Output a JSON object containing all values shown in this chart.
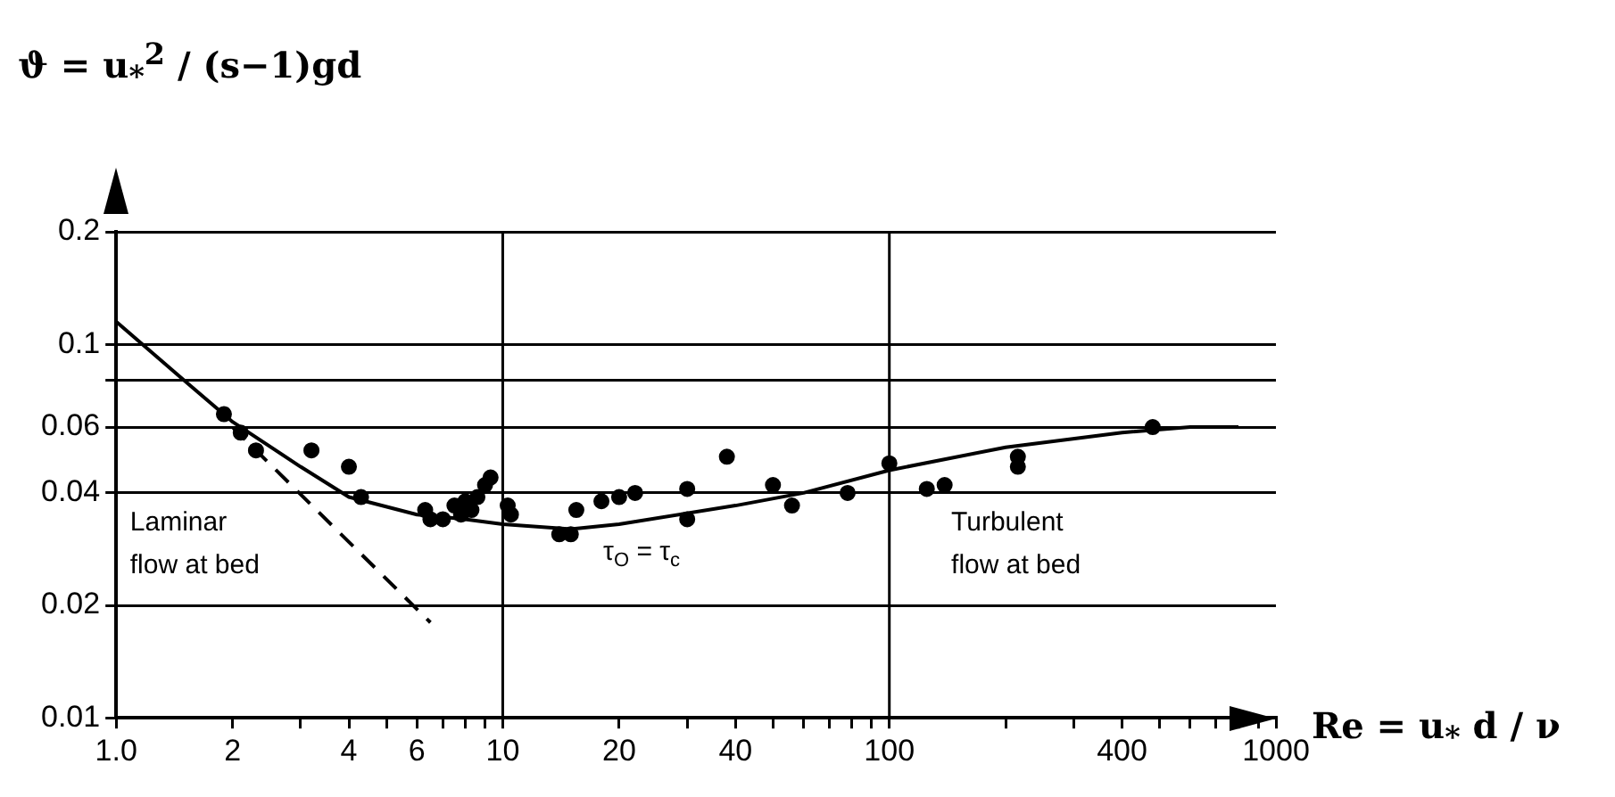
{
  "chart_data": {
    "type": "scatter",
    "ylabel": "ϑ = u$_{*}$$^{2}$ / (s−1)gd",
    "xlabel": "Re = u$_{*}$ d / ν",
    "log": "xy",
    "grid": "y",
    "xlim": [
      1,
      1000
    ],
    "ylim": [
      0.01,
      0.2
    ],
    "xticks": [
      {
        "value": 1,
        "label": "1.0"
      },
      2,
      {
        "value": 3,
        "label": null
      },
      4,
      {
        "value": 5,
        "label": null
      },
      6,
      {
        "value": 7,
        "label": null
      },
      {
        "value": 8,
        "label": null
      },
      {
        "value": 9,
        "label": null
      },
      10,
      20,
      {
        "value": 30,
        "label": null
      },
      40,
      {
        "value": 50,
        "label": null
      },
      {
        "value": 60,
        "label": null
      },
      {
        "value": 70,
        "label": null
      },
      {
        "value": 80,
        "label": null
      },
      {
        "value": 90,
        "label": null
      },
      100,
      {
        "value": 200,
        "label": null
      },
      {
        "value": 300,
        "label": null
      },
      400,
      {
        "value": 500,
        "label": null
      },
      {
        "value": 600,
        "label": null
      },
      {
        "value": 700,
        "label": null
      },
      {
        "value": 800,
        "label": null
      },
      {
        "value": 900,
        "label": null
      },
      1000
    ],
    "yticks": [
      0.01,
      0.02,
      0.04,
      0.06,
      {
        "value": 0.08,
        "label": null
      },
      0.1,
      0.2
    ],
    "ref_lines": [
      {
        "axis": "x",
        "value": 10,
        "color": "#000000"
      },
      {
        "axis": "x",
        "value": 100,
        "color": "#000000"
      }
    ],
    "series": [
      {
        "type": "line",
        "color": "#000000",
        "line_style": "solid",
        "marker": "none",
        "x": [
          1,
          1.5,
          2,
          3,
          4,
          6,
          8,
          10,
          15,
          20,
          40,
          60,
          100,
          200,
          400,
          600,
          800
        ],
        "values": [
          0.115,
          0.08,
          0.062,
          0.047,
          0.039,
          0.035,
          0.034,
          0.033,
          0.032,
          0.033,
          0.037,
          0.04,
          0.046,
          0.053,
          0.058,
          0.06,
          0.06
        ]
      },
      {
        "type": "line",
        "color": "#000000",
        "line_style": "dashed",
        "marker": "none",
        "x": [
          2,
          6.5
        ],
        "values": [
          0.06,
          0.018
        ]
      },
      {
        "type": "scatter",
        "color": "#000000",
        "marker": "circle",
        "x": [
          1.9,
          2.1,
          2.3,
          3.2,
          4,
          4.3,
          6.3,
          6.5,
          7,
          7.5,
          7.8,
          8,
          8.3,
          8.6,
          9,
          9.3,
          10.3,
          10.5,
          14,
          15,
          15.5,
          18,
          20,
          22,
          30,
          30,
          38,
          50,
          56,
          78,
          100,
          125,
          139,
          215,
          215,
          480
        ],
        "values": [
          0.065,
          0.058,
          0.052,
          0.052,
          0.047,
          0.039,
          0.036,
          0.034,
          0.034,
          0.037,
          0.035,
          0.038,
          0.036,
          0.039,
          0.042,
          0.044,
          0.037,
          0.035,
          0.031,
          0.031,
          0.036,
          0.038,
          0.039,
          0.04,
          0.041,
          0.034,
          0.05,
          0.042,
          0.037,
          0.04,
          0.048,
          0.041,
          0.042,
          0.047,
          0.05,
          0.06
        ]
      }
    ],
    "annotations": [
      "Laminar\nflow at bed",
      "τ$_{O}$ = τ$_{c}$",
      "Turbulent\nflow at bed"
    ]
  }
}
